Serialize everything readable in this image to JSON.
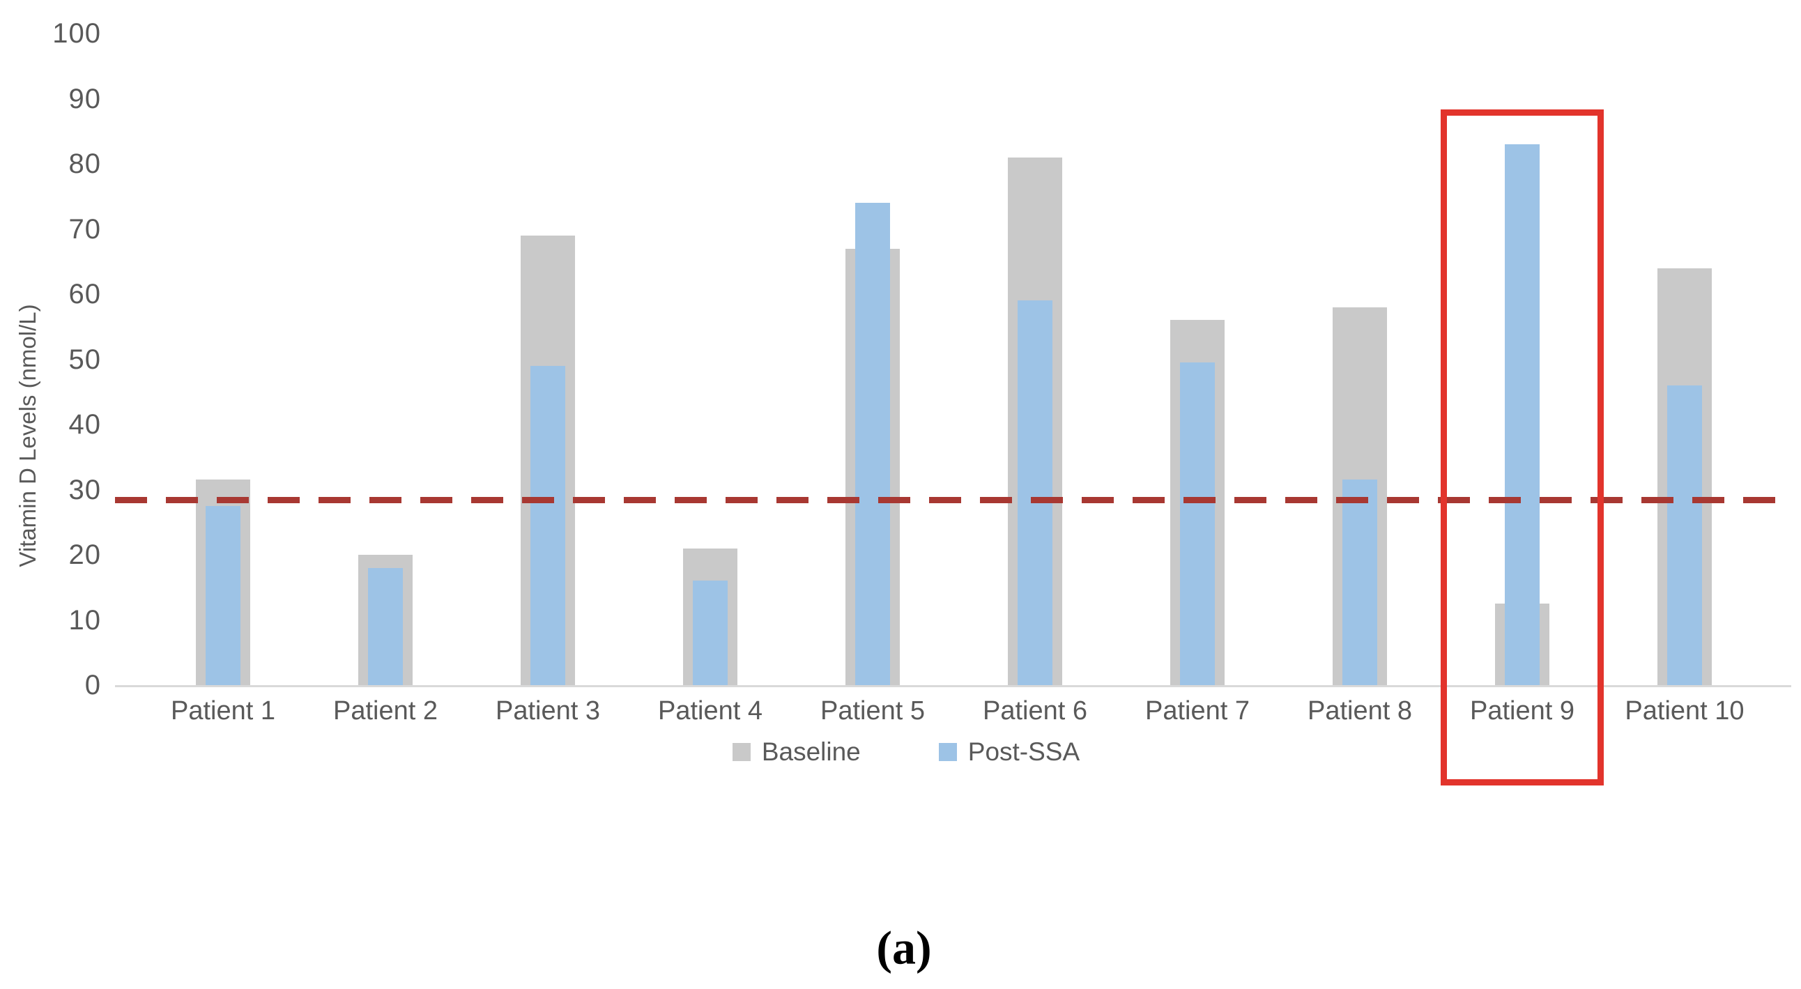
{
  "figure": {
    "caption": "(a)",
    "background": "#ffffff"
  },
  "chart_data": {
    "type": "bar",
    "bar_mode": "overlap",
    "title": "",
    "xlabel": "",
    "ylabel": "Vitamin D Levels (nmol/L)",
    "ylim": [
      0,
      100
    ],
    "yticks": [
      0,
      10,
      20,
      30,
      40,
      50,
      60,
      70,
      80,
      90,
      100
    ],
    "grid": false,
    "legend_position": "bottom",
    "categories": [
      "Patient 1",
      "Patient 2",
      "Patient 3",
      "Patient 4",
      "Patient 5",
      "Patient 6",
      "Patient 7",
      "Patient 8",
      "Patient 9",
      "Patient 10"
    ],
    "series": [
      {
        "name": "Baseline",
        "color": "#c9c9c9",
        "values": [
          31.5,
          20,
          69,
          21,
          67,
          81,
          56,
          58,
          12.5,
          64
        ]
      },
      {
        "name": "Post-SSA",
        "color": "#9dc3e6",
        "values": [
          27.5,
          18,
          49,
          16,
          74,
          59,
          49.5,
          31.5,
          83,
          46
        ]
      }
    ],
    "threshold_line": {
      "value": 28.5,
      "style": "dashed",
      "color": "#a83832"
    },
    "highlight": {
      "category": "Patient 9",
      "color": "#e2342c"
    }
  },
  "colors": {
    "tick_text": "#595959",
    "axis_line": "#d9d9d9",
    "caption_text": "#000000"
  }
}
